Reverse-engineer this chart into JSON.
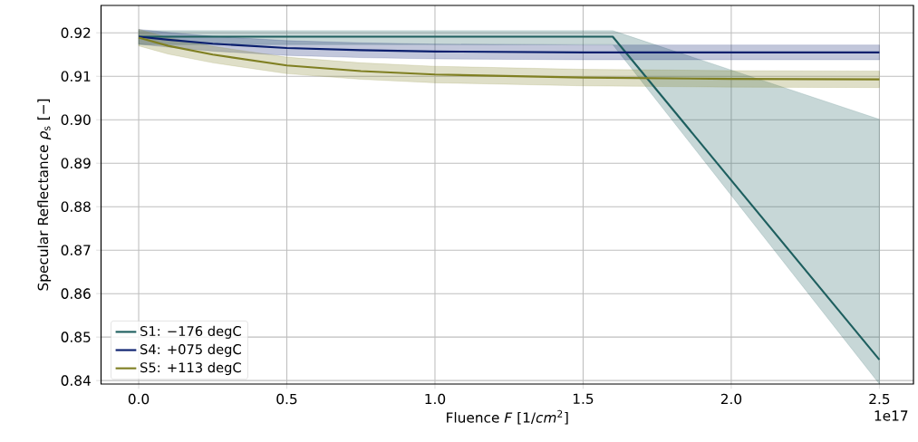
{
  "chart_data": {
    "type": "line",
    "xlabel": "Fluence *F* [1/*cm*$^{2}$]",
    "ylabel": "Specular Reflectance *ρ*$_{s}$ [−]",
    "xlim": [
      -0.127,
      2.615
    ],
    "ylim": [
      0.8392,
      0.9263
    ],
    "xticks": [
      {
        "value": 0,
        "label": "0.0"
      },
      0.5,
      {
        "value": 1,
        "label": "1.0"
      },
      1.5,
      {
        "value": 2,
        "label": "2.0"
      },
      2.5
    ],
    "yticks": [
      0.84,
      0.85,
      0.86,
      0.87,
      0.88,
      0.89,
      {
        "value": 0.9,
        "label": "0.90"
      },
      0.91,
      0.92
    ],
    "grid": true,
    "legend": "bottom left",
    "line_style": "solid",
    "marker": "none",
    "annotations": [
      "1e17"
    ],
    "series": [
      {
        "name": "S1: −176 degC",
        "color": "#1e5f5f",
        "x": [
          0,
          1.6,
          2.5
        ],
        "values": [
          0.9191,
          0.9191,
          0.8448
        ],
        "lower": [
          0.9173,
          0.9173,
          0.8392
        ],
        "upper": [
          0.9205,
          0.9205,
          0.9001
        ]
      },
      {
        "name": "S4: +075 degC",
        "color": "#0b1f6e",
        "x": [
          0,
          0.1,
          0.25,
          0.5,
          0.75,
          1,
          1.5,
          2,
          2.5
        ],
        "values": [
          0.9191,
          0.9184,
          0.9175,
          0.9165,
          0.916,
          0.9157,
          0.9155,
          0.9155,
          0.9155
        ],
        "lower": [
          0.9174,
          0.9167,
          0.9158,
          0.9148,
          0.9143,
          0.914,
          0.9138,
          0.9138,
          0.9138
        ],
        "upper": [
          0.9208,
          0.9201,
          0.9192,
          0.9182,
          0.9177,
          0.9174,
          0.9172,
          0.9172,
          0.9172
        ]
      },
      {
        "name": "S5: +113 degC",
        "color": "#7f7f22",
        "x": [
          0,
          0.1,
          0.25,
          0.5,
          0.75,
          1,
          1.5,
          2,
          2.5
        ],
        "values": [
          0.9189,
          0.917,
          0.915,
          0.9125,
          0.9112,
          0.9104,
          0.9097,
          0.9094,
          0.9093
        ],
        "lower": [
          0.917,
          0.9151,
          0.9131,
          0.9106,
          0.9093,
          0.9085,
          0.9078,
          0.9075,
          0.9074
        ],
        "upper": [
          0.9208,
          0.9189,
          0.9169,
          0.9144,
          0.9131,
          0.9123,
          0.9116,
          0.9113,
          0.9112
        ]
      }
    ]
  }
}
